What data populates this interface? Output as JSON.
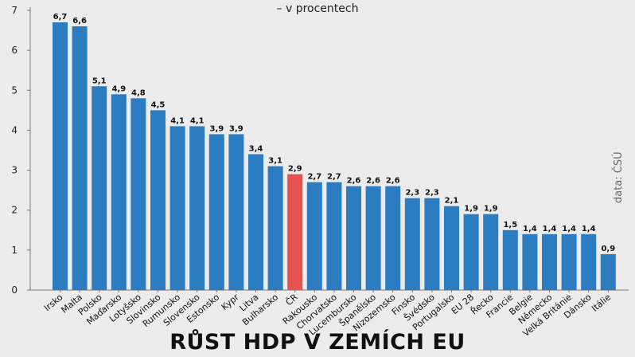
{
  "chart_data": {
    "type": "bar",
    "title": "RŮST HDP V ZEMÍCH EU",
    "subtitle": "– v procentech",
    "source": "data: ČSÚ",
    "categories": [
      "Irsko",
      "Malta",
      "Polsko",
      "Maďarsko",
      "Lotyšsko",
      "Slovinsko",
      "Rumunsko",
      "Slovensko",
      "Estonsko",
      "Kypr",
      "Litva",
      "Bulharsko",
      "ČR",
      "Rakousko",
      "Chorvatsko",
      "Lucembursko",
      "Španělsko",
      "Nizozemsko",
      "Finsko",
      "Švédsko",
      "Portugalsko",
      "EU 28",
      "Řecko",
      "Francie",
      "Belgie",
      "Německo",
      "Velká Británie",
      "Dánsko",
      "Itálie"
    ],
    "values": [
      6.7,
      6.6,
      5.1,
      4.9,
      4.8,
      4.5,
      4.1,
      4.1,
      3.9,
      3.9,
      3.4,
      3.1,
      2.9,
      2.7,
      2.7,
      2.6,
      2.6,
      2.6,
      2.3,
      2.3,
      2.1,
      1.9,
      1.9,
      1.5,
      1.4,
      1.4,
      1.4,
      1.4,
      0.9
    ],
    "value_labels": [
      "6,7",
      "6,6",
      "5,1",
      "4,9",
      "4,8",
      "4,5",
      "4,1",
      "4,1",
      "3,9",
      "3,9",
      "3,4",
      "3,1",
      "2,9",
      "2,7",
      "2,7",
      "2,6",
      "2,6",
      "2,6",
      "2,3",
      "2,3",
      "2,1",
      "1,9",
      "1,9",
      "1,5",
      "1,4",
      "1,4",
      "1,4",
      "1,4",
      "0,9"
    ],
    "highlight_category": "ČR",
    "yticks": [
      "0",
      "1",
      "2",
      "3",
      "4",
      "5",
      "6",
      "7"
    ],
    "ylim": [
      0,
      7
    ],
    "grid": false,
    "colors": {
      "bar": "#2b7cc1",
      "highlight": "#e8524f",
      "axis": "#777777"
    }
  }
}
